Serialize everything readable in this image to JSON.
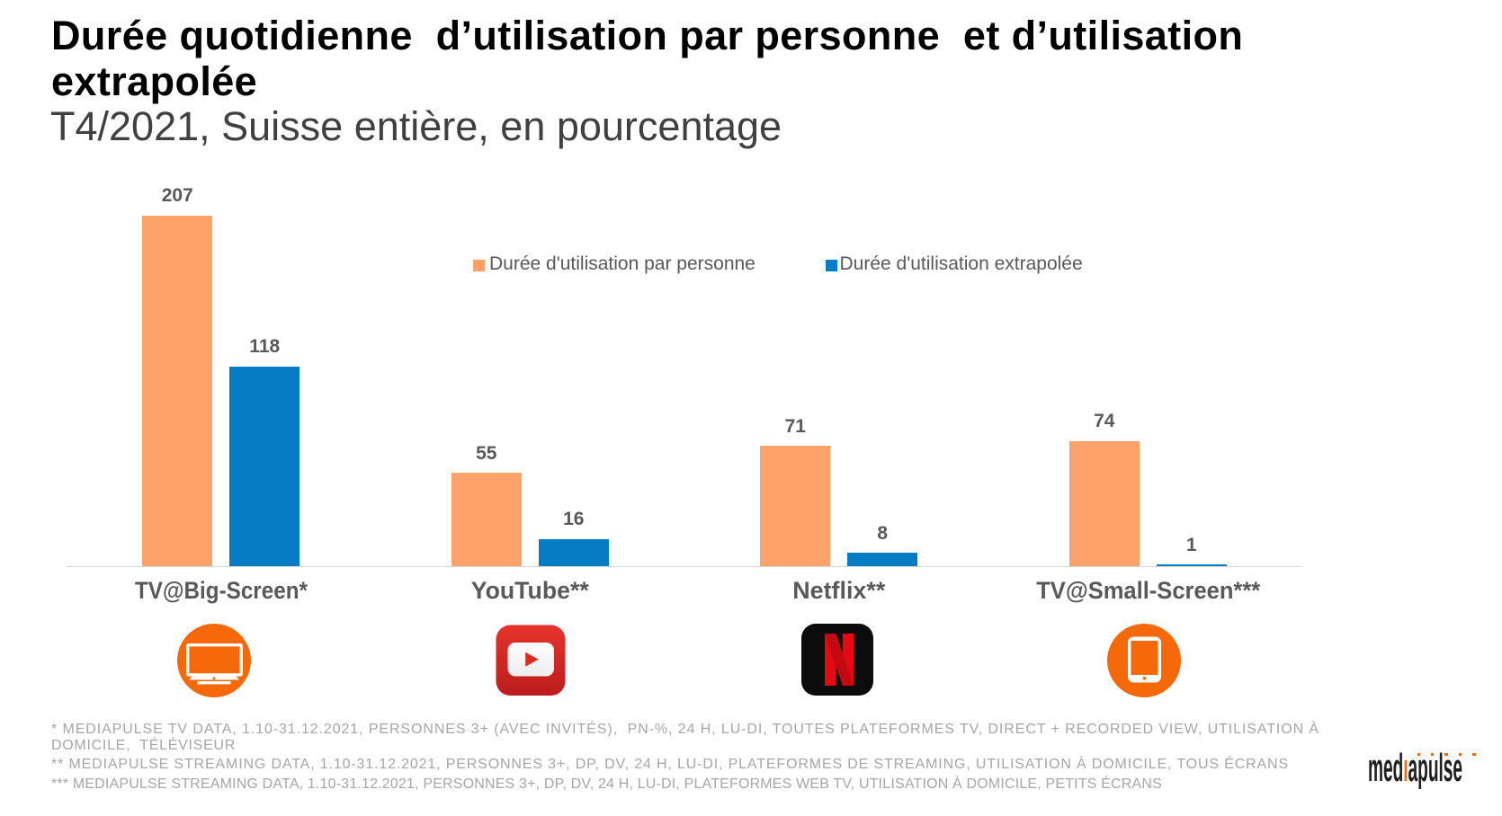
{
  "header": {
    "title": "Durée quotidienne  d’utilisation par personne  et d’utilisation extrapolée",
    "subtitle": "T4/2021, Suisse entière, en pourcentage"
  },
  "chart_data": {
    "type": "bar",
    "title": "Durée quotidienne  d’utilisation par personne  et d’utilisation extrapolée",
    "subtitle": "T4/2021, Suisse entière, en pourcentage",
    "categories": [
      "TV@Big-Screen*",
      "YouTube**",
      "Netflix**",
      "TV@Small-Screen***"
    ],
    "series": [
      {
        "name": "Durée d'utilisation par personne",
        "color": "#FCA26A",
        "values": [
          207,
          55,
          71,
          74
        ]
      },
      {
        "name": "Durée d'utilisation extrapolée",
        "color": "#067CC4",
        "values": [
          118,
          16,
          8,
          1
        ]
      }
    ],
    "value_labels": true,
    "xlabel": "",
    "ylabel": "",
    "grid": false,
    "y_axis_visible": false,
    "legend_position": "top-center"
  },
  "legend": {
    "items": [
      {
        "label": "Durée d'utilisation par personne",
        "color": "#FCA26A"
      },
      {
        "label": "Durée d'utilisation extrapolée",
        "color": "#067CC4"
      }
    ]
  },
  "icons": {
    "items": [
      {
        "name": "tv-big-screen",
        "shape": "orange circle with white television"
      },
      {
        "name": "youtube",
        "shape": "red rounded square with white play button"
      },
      {
        "name": "netflix",
        "shape": "black rounded square with red N"
      },
      {
        "name": "tv-small-screen",
        "shape": "orange circle with white tablet"
      }
    ],
    "orange": "#F6690A",
    "youtube_red": "#E42D24",
    "netflix_red": "#E50914"
  },
  "footnotes": {
    "lines": [
      "* MEDIAPULSE TV DATA, 1.10-31.12.2021, PERSONNES 3+ (AVEC INVITÉS),  PN-%, 24 H, LU-DI, TOUTES PLATEFORMES TV, DIRECT + RECORDED VIEW, UTILISATION À",
      "DOMICILE,  TÉLÉVISEUR",
      "** MEDIAPULSE STREAMING DATA, 1.10-31.12.2021, PERSONNES 3+, DP, DV, 24 H, LU-DI, PLATEFORMES DE STREAMING, UTILISATION À DOMICILE, TOUS ÉCRANS",
      "*** MEDIAPULSE STREAMING DATA, 1.10-31.12.2021, PERSONNES 3+, DP, DV, 24 H, LU-DI, PLATEFORMES WEB TV, UTILISATION À DOMICILE, PETITS ÉCRANS"
    ]
  },
  "logo": {
    "text_pre": "med",
    "text_accent": "ı",
    "text_post": "apulse",
    "accent_color": "#F6690A"
  },
  "colors": {
    "bar_orange": "#FCA26A",
    "bar_blue": "#067CC4",
    "axis": "#D9D9D9",
    "label_gray": "#595959",
    "footnote_gray": "#A6A6A6",
    "title_black": "#000000",
    "subtitle_gray": "#404040",
    "background": "#FFFFFF"
  }
}
